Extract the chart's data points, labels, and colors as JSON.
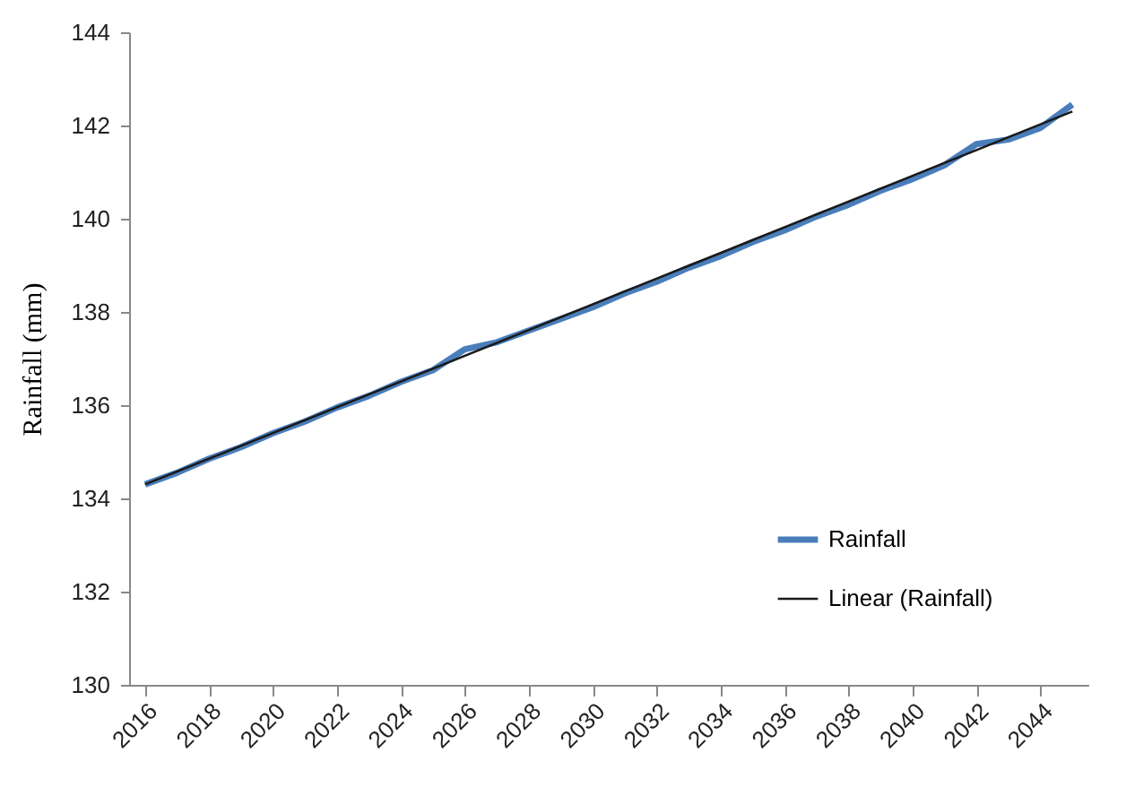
{
  "chart_data": {
    "type": "line",
    "ylabel": "Rainfall (mm)",
    "x": [
      2016,
      2017,
      2018,
      2019,
      2020,
      2021,
      2022,
      2023,
      2024,
      2025,
      2026,
      2027,
      2028,
      2029,
      2030,
      2031,
      2032,
      2033,
      2034,
      2035,
      2036,
      2037,
      2038,
      2039,
      2040,
      2041,
      2042,
      2043,
      2044,
      2045
    ],
    "series": [
      {
        "name": "Rainfall",
        "color": "#4a7ebb",
        "values": [
          134.3,
          134.55,
          134.85,
          135.1,
          135.4,
          135.65,
          135.95,
          136.2,
          136.5,
          136.75,
          137.2,
          137.35,
          137.6,
          137.85,
          138.1,
          138.4,
          138.65,
          138.95,
          139.2,
          139.5,
          139.75,
          140.05,
          140.3,
          140.6,
          140.85,
          141.15,
          141.6,
          141.7,
          141.95,
          142.45
        ]
      },
      {
        "name": "Linear (Rainfall)",
        "color": "#1a1a1a",
        "x": [
          2016,
          2045
        ],
        "values": [
          134.3,
          142.3
        ]
      }
    ],
    "xlim": [
      2015.5,
      2045.5
    ],
    "xticks": [
      2016,
      2018,
      2020,
      2022,
      2024,
      2026,
      2028,
      2030,
      2032,
      2034,
      2036,
      2038,
      2040,
      2042,
      2044
    ],
    "ylim": [
      130,
      144
    ],
    "yticks": [
      130,
      132,
      134,
      136,
      138,
      140,
      142,
      144
    ],
    "grid": false,
    "legend": "bottom right",
    "marker": "none",
    "line_style": "solid"
  }
}
